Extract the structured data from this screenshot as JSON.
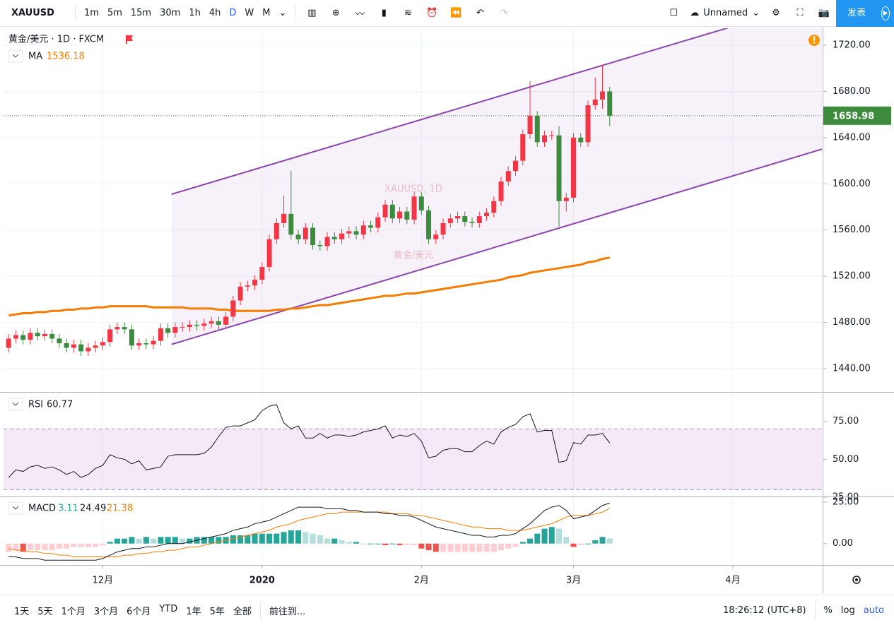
{
  "toolbar": {
    "symbol": "XAUUSD",
    "intervals": [
      "1m",
      "5m",
      "15m",
      "30m",
      "1h",
      "4h",
      "D",
      "W",
      "M"
    ],
    "layout_name": "Unnamed",
    "publish": "发表"
  },
  "chart_data": [
    {
      "type": "candlestick",
      "title": "黄金/美元 · 1D · FXCM",
      "watermark": "XAUUSD, 1D",
      "watermark_subtitle": "黄金/美元",
      "up_color": "#f23645",
      "down_color": "#3d8b3d",
      "open": [
        1458,
        1466,
        1469,
        1465,
        1471,
        1468,
        1470,
        1466,
        1462,
        1458,
        1461,
        1455,
        1458,
        1460,
        1463,
        1474,
        1476,
        1474,
        1460,
        1462,
        1461,
        1464,
        1475,
        1471,
        1476,
        1476,
        1478,
        1477,
        1479,
        1481,
        1478,
        1485,
        1499,
        1511,
        1512,
        1517,
        1528,
        1552,
        1566,
        1574,
        1556,
        1552,
        1562,
        1547,
        1546,
        1554,
        1552,
        1557,
        1559,
        1556,
        1564,
        1562,
        1571,
        1582,
        1570,
        1576,
        1569,
        1589,
        1577,
        1552,
        1556,
        1566,
        1570,
        1572,
        1567,
        1566,
        1572,
        1575,
        1585,
        1602,
        1611,
        1620,
        1643,
        1659,
        1636,
        1642,
        1642,
        1585,
        1588,
        1640,
        1636,
        1668,
        1673,
        1680
      ],
      "high": [
        1470,
        1473,
        1473,
        1475,
        1475,
        1474,
        1474,
        1470,
        1466,
        1465,
        1465,
        1462,
        1464,
        1467,
        1478,
        1480,
        1480,
        1478,
        1466,
        1466,
        1468,
        1479,
        1479,
        1480,
        1480,
        1482,
        1482,
        1483,
        1485,
        1485,
        1489,
        1503,
        1515,
        1516,
        1521,
        1532,
        1556,
        1570,
        1590,
        1611,
        1560,
        1566,
        1566,
        1551,
        1558,
        1558,
        1561,
        1563,
        1563,
        1568,
        1568,
        1575,
        1586,
        1586,
        1580,
        1580,
        1593,
        1593,
        1581,
        1560,
        1570,
        1574,
        1576,
        1576,
        1571,
        1576,
        1579,
        1589,
        1606,
        1615,
        1624,
        1647,
        1689,
        1663,
        1646,
        1646,
        1650,
        1592,
        1644,
        1644,
        1672,
        1692,
        1703,
        1684
      ],
      "low": [
        1454,
        1462,
        1461,
        1461,
        1464,
        1464,
        1462,
        1458,
        1454,
        1454,
        1451,
        1451,
        1454,
        1456,
        1459,
        1470,
        1470,
        1456,
        1456,
        1457,
        1457,
        1460,
        1467,
        1467,
        1472,
        1472,
        1473,
        1473,
        1475,
        1474,
        1474,
        1481,
        1495,
        1507,
        1508,
        1513,
        1524,
        1548,
        1562,
        1552,
        1548,
        1548,
        1543,
        1542,
        1542,
        1548,
        1548,
        1553,
        1552,
        1552,
        1558,
        1558,
        1567,
        1566,
        1566,
        1565,
        1565,
        1573,
        1548,
        1548,
        1552,
        1562,
        1566,
        1563,
        1562,
        1562,
        1568,
        1571,
        1581,
        1598,
        1607,
        1616,
        1639,
        1632,
        1632,
        1638,
        1563,
        1576,
        1584,
        1632,
        1632,
        1664,
        1665,
        1650
      ],
      "close": [
        1466,
        1469,
        1465,
        1471,
        1468,
        1470,
        1466,
        1462,
        1458,
        1461,
        1455,
        1458,
        1460,
        1463,
        1474,
        1476,
        1474,
        1460,
        1462,
        1461,
        1464,
        1475,
        1471,
        1476,
        1476,
        1478,
        1477,
        1479,
        1481,
        1478,
        1485,
        1499,
        1511,
        1512,
        1517,
        1528,
        1552,
        1566,
        1574,
        1556,
        1552,
        1562,
        1547,
        1546,
        1554,
        1552,
        1557,
        1559,
        1556,
        1564,
        1562,
        1571,
        1582,
        1570,
        1576,
        1569,
        1589,
        1577,
        1552,
        1556,
        1566,
        1570,
        1572,
        1567,
        1566,
        1572,
        1575,
        1585,
        1602,
        1611,
        1620,
        1643,
        1659,
        1636,
        1642,
        1642,
        1585,
        1588,
        1640,
        1636,
        1668,
        1673,
        1680,
        1658.98
      ],
      "series": [
        {
          "name": "MA",
          "color": "#f57c00",
          "values": [
            1486,
            1487,
            1488,
            1488,
            1489,
            1489,
            1490,
            1490,
            1491,
            1491,
            1492,
            1492,
            1493,
            1493,
            1494,
            1494,
            1494,
            1494,
            1494,
            1494,
            1493,
            1493,
            1493,
            1493,
            1493,
            1492,
            1492,
            1492,
            1492,
            1491,
            1491,
            1490,
            1490,
            1490,
            1490,
            1490,
            1490,
            1491,
            1491,
            1492,
            1492,
            1493,
            1494,
            1495,
            1495,
            1496,
            1497,
            1498,
            1499,
            1500,
            1501,
            1502,
            1503,
            1503,
            1504,
            1505,
            1505,
            1506,
            1507,
            1508,
            1509,
            1510,
            1511,
            1512,
            1513,
            1514,
            1515,
            1516,
            1517,
            1519,
            1520,
            1521,
            1523,
            1524,
            1525,
            1526,
            1527,
            1528,
            1529,
            1530,
            1532,
            1533,
            1535,
            1536.18
          ]
        }
      ],
      "channel": {
        "color": "#8e44ad",
        "upper": [
          [
            22.5,
            1591
          ],
          [
            99.3,
            1735
          ]
        ],
        "lower": [
          [
            22.5,
            1461
          ],
          [
            112.3,
            1630
          ]
        ]
      },
      "xlim": [
        -0.7,
        112.3
      ],
      "xticks": [
        {
          "value": 13,
          "label": "12月"
        },
        {
          "value": 35,
          "label": "2020"
        },
        {
          "value": 57,
          "label": "2月"
        },
        {
          "value": 78,
          "label": "3月"
        },
        {
          "value": 100,
          "label": "4月"
        }
      ],
      "ylim": [
        1419.8,
        1734.7
      ],
      "yticks": [
        {
          "value": 1440,
          "label": "1440.00"
        },
        {
          "value": 1480,
          "label": "1480.00"
        },
        {
          "value": 1520,
          "label": "1520.00"
        },
        {
          "value": 1560,
          "label": "1560.00"
        },
        {
          "value": 1600,
          "label": "1600.00"
        },
        {
          "value": 1640,
          "label": "1640.00"
        },
        {
          "value": 1680,
          "label": "1680.00"
        },
        {
          "value": 1720,
          "label": "1720.00"
        }
      ],
      "grid": true
    },
    {
      "type": "line",
      "title": "RSI",
      "color": "#131722",
      "band": [
        30,
        70
      ],
      "band_color": "#9c27b0",
      "values": [
        38,
        43,
        42,
        45,
        46,
        44,
        45,
        43,
        40,
        42,
        38,
        40,
        44,
        46,
        53,
        51,
        50,
        47,
        49,
        43,
        44,
        45,
        52,
        53,
        53,
        53,
        53,
        54,
        58,
        65,
        71,
        72,
        72,
        74,
        76,
        82,
        85,
        86,
        74,
        70,
        72,
        64,
        64,
        67,
        64,
        66,
        66,
        65,
        66,
        68,
        69,
        70,
        72,
        64,
        66,
        65,
        67,
        62,
        51,
        52,
        56,
        57,
        57,
        55,
        55,
        59,
        62,
        60,
        68,
        71,
        73,
        78,
        80,
        68,
        69,
        69,
        48,
        49,
        61,
        60,
        66,
        66,
        67,
        60.77
      ],
      "ylim": [
        25.5,
        93.9
      ],
      "yticks": [
        {
          "value": 25,
          "label": "25.00"
        },
        {
          "value": 50,
          "label": "50.00"
        },
        {
          "value": 75,
          "label": "75.00"
        }
      ]
    },
    {
      "type": "macd",
      "title": "MACD",
      "histogram": [
        -5,
        -4,
        -5,
        -4,
        -4,
        -4,
        -4,
        -3,
        -3,
        -2,
        -2,
        -2,
        -2,
        -1,
        1,
        3,
        3,
        4,
        3,
        4,
        3,
        4,
        4,
        4,
        3,
        3,
        4,
        4,
        4,
        4,
        4,
        5,
        5,
        5,
        6,
        6,
        6,
        6,
        7,
        8,
        8,
        7,
        6,
        5,
        3,
        3,
        2,
        1,
        1,
        0,
        0,
        0,
        -1,
        0,
        -1,
        -1,
        -1,
        -3,
        -4,
        -5,
        -5,
        -5,
        -5,
        -5,
        -5,
        -5,
        -5,
        -5,
        -4,
        -3,
        -2,
        1,
        3,
        6,
        9,
        10,
        9,
        4,
        -2,
        -1,
        0,
        2,
        4,
        3.11
      ],
      "macd": [
        -8,
        -8,
        -9,
        -9,
        -9,
        -10,
        -10,
        -10,
        -10,
        -10,
        -10,
        -10,
        -10,
        -9,
        -7,
        -5,
        -4,
        -3,
        -3,
        -2,
        -2,
        -1,
        0,
        0,
        0,
        1,
        2,
        3,
        4,
        5,
        6,
        8,
        9,
        10,
        12,
        13,
        14,
        16,
        18,
        20,
        22,
        22,
        22,
        22,
        21,
        21,
        21,
        20,
        20,
        19,
        19,
        19,
        18,
        18,
        17,
        17,
        16,
        14,
        12,
        10,
        9,
        8,
        7,
        6,
        5,
        5,
        4,
        4,
        5,
        5,
        6,
        9,
        12,
        16,
        20,
        22,
        23,
        20,
        15,
        16,
        17,
        20,
        23,
        24.49
      ],
      "signal": [
        -3,
        -4,
        -4,
        -5,
        -5,
        -6,
        -6,
        -7,
        -7,
        -8,
        -8,
        -8,
        -8,
        -8,
        -8,
        -8,
        -7,
        -7,
        -6,
        -6,
        -5,
        -5,
        -4,
        -4,
        -3,
        -2,
        -2,
        -1,
        0,
        1,
        2,
        3,
        4,
        5,
        6,
        7,
        8,
        10,
        11,
        12,
        14,
        15,
        16,
        17,
        18,
        18,
        19,
        19,
        19,
        19,
        19,
        19,
        19,
        18,
        18,
        18,
        17,
        17,
        16,
        15,
        14,
        13,
        12,
        11,
        10,
        10,
        9,
        9,
        9,
        8,
        8,
        8,
        9,
        10,
        11,
        12,
        14,
        16,
        17,
        17,
        17,
        18,
        19,
        21.38
      ],
      "histogram_color": "#26a69a",
      "macd_color": "#131722",
      "signal_color": "#f57c00",
      "ylim": [
        -12.9,
        28
      ],
      "yticks": [
        {
          "value": 0,
          "label": "0.00"
        },
        {
          "value": 25,
          "label": "25.00"
        }
      ]
    }
  ],
  "footer": {
    "ranges": [
      "1天",
      "5天",
      "1个月",
      "3个月",
      "6个月",
      "YTD",
      "1年",
      "5年",
      "全部"
    ],
    "goto": "前往到...",
    "time": "18:26:12 (UTC+8)",
    "percent": "%",
    "log": "log",
    "auto": "auto"
  }
}
